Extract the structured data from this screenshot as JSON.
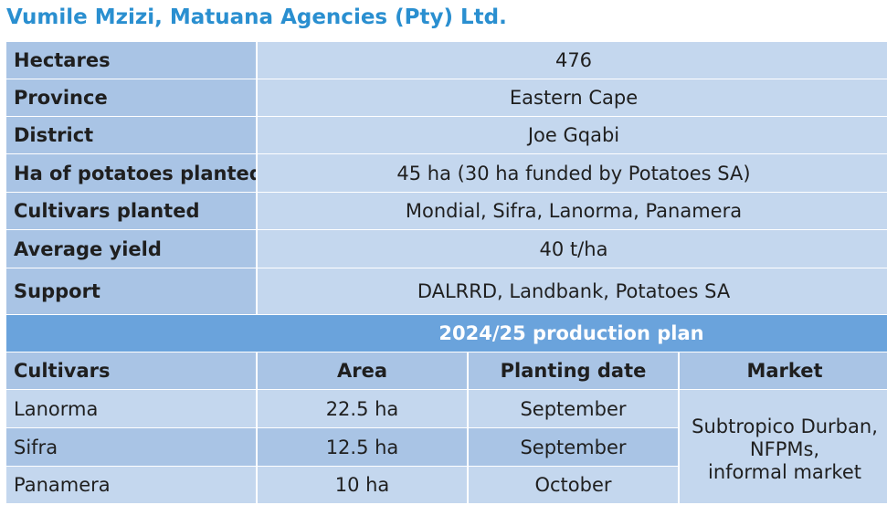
{
  "title": "Vumile Mzizi, Matuana Agencies (Pty) Ltd.",
  "info": [
    {
      "label": "Hectares",
      "value": "476"
    },
    {
      "label": "Province",
      "value": "Eastern Cape"
    },
    {
      "label": "District",
      "value": "Joe Gqabi"
    },
    {
      "label": "Ha of potatoes planted",
      "value": "45 ha (30 ha funded by Potatoes SA)"
    },
    {
      "label": "Cultivars planted",
      "value": "Mondial, Sifra, Lanorma, Panamera"
    },
    {
      "label": "Average yield",
      "value": "40 t/ha"
    },
    {
      "label": "Support",
      "value": "DALRRD, Landbank, Potatoes SA"
    }
  ],
  "plan": {
    "heading": "2024/25 production plan",
    "columns": [
      "Cultivars",
      "Area",
      "Planting date",
      "Market"
    ],
    "rows": [
      {
        "cultivar": "Lanorma",
        "area": "22.5 ha",
        "date": "September"
      },
      {
        "cultivar": "Sifra",
        "area": "12.5 ha",
        "date": "September"
      },
      {
        "cultivar": "Panamera",
        "area": "10 ha",
        "date": "October"
      }
    ],
    "market_lines": [
      "Subtropico Durban,",
      "NFPMs,",
      "informal market"
    ]
  }
}
